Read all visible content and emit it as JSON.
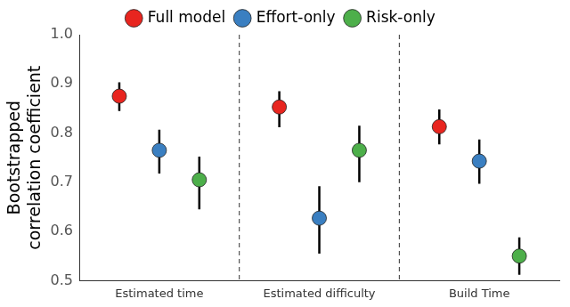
{
  "chart_data": {
    "type": "scatter",
    "y_label": "Bootstrapped\ncorrelation coefficient",
    "categories": [
      "Estimated time",
      "Estimated difficulty",
      "Build Time"
    ],
    "series": [
      {
        "name": "Full model",
        "color": "#e8251f",
        "values": [
          0.875,
          0.853,
          0.813
        ],
        "error_low": [
          0.845,
          0.812,
          0.777
        ],
        "error_high": [
          0.903,
          0.885,
          0.848
        ]
      },
      {
        "name": "Effort-only",
        "color": "#3a7fc1",
        "values": [
          0.765,
          0.627,
          0.743
        ],
        "error_low": [
          0.718,
          0.555,
          0.697
        ],
        "error_high": [
          0.807,
          0.692,
          0.787
        ]
      },
      {
        "name": "Risk-only",
        "color": "#4daf4a",
        "values": [
          0.705,
          0.765,
          0.55
        ],
        "error_low": [
          0.645,
          0.7,
          0.512
        ],
        "error_high": [
          0.752,
          0.815,
          0.588
        ]
      }
    ],
    "ylim": [
      0.5,
      1
    ],
    "yticks": [
      0.5,
      0.6,
      0.7,
      0.8,
      0.9,
      {
        "value": 1,
        "label": "1.0"
      }
    ],
    "grid": false,
    "legend": "top",
    "marker": "circle"
  }
}
